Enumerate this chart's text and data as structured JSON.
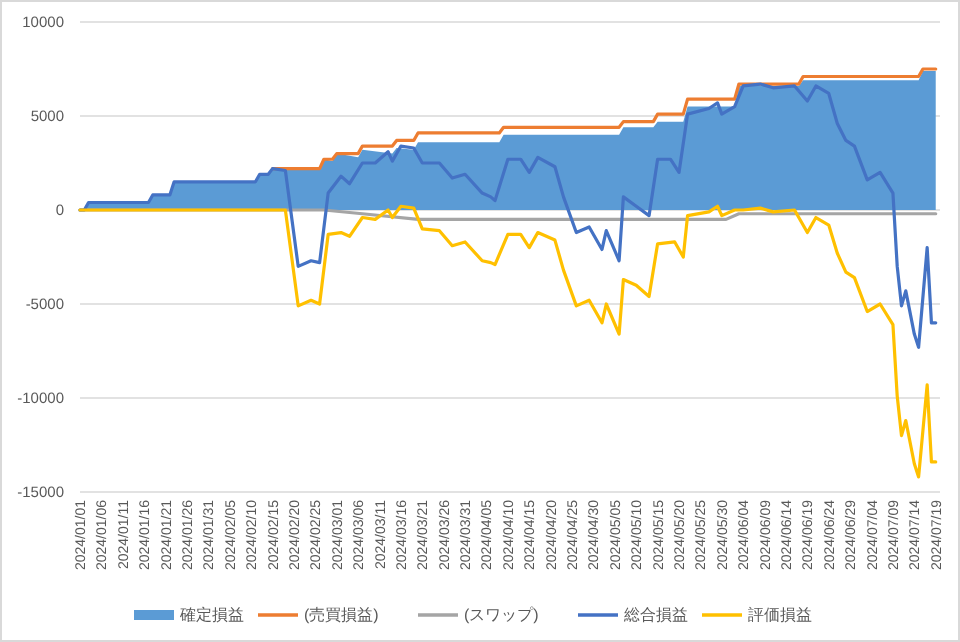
{
  "chart_data": {
    "type": "area",
    "ylim": [
      -15000,
      10000
    ],
    "yticks": [
      -15000,
      -10000,
      -5000,
      0,
      5000,
      10000
    ],
    "xlim": [
      "2024-01-01",
      "2024-07-20"
    ],
    "xticks": [
      {
        "value": "2024-01-01",
        "label": "2024/01/01"
      },
      {
        "value": "2024-01-06",
        "label": "2024/01/06"
      },
      {
        "value": "2024-01-11",
        "label": "2024/01/11"
      },
      {
        "value": "2024-01-16",
        "label": "2024/01/16"
      },
      {
        "value": "2024-01-21",
        "label": "2024/01/21"
      },
      {
        "value": "2024-01-26",
        "label": "2024/01/26"
      },
      {
        "value": "2024-01-31",
        "label": "2024/01/31"
      },
      {
        "value": "2024-02-05",
        "label": "2024/02/05"
      },
      {
        "value": "2024-02-10",
        "label": "2024/02/10"
      },
      {
        "value": "2024-02-15",
        "label": "2024/02/15"
      },
      {
        "value": "2024-02-20",
        "label": "2024/02/20"
      },
      {
        "value": "2024-02-25",
        "label": "2024/02/25"
      },
      {
        "value": "2024-03-01",
        "label": "2024/03/01"
      },
      {
        "value": "2024-03-06",
        "label": "2024/03/06"
      },
      {
        "value": "2024-03-11",
        "label": "2024/03/11"
      },
      {
        "value": "2024-03-16",
        "label": "2024/03/16"
      },
      {
        "value": "2024-03-21",
        "label": "2024/03/21"
      },
      {
        "value": "2024-03-26",
        "label": "2024/03/26"
      },
      {
        "value": "2024-03-31",
        "label": "2024/03/31"
      },
      {
        "value": "2024-04-05",
        "label": "2024/04/05"
      },
      {
        "value": "2024-04-10",
        "label": "2024/04/10"
      },
      {
        "value": "2024-04-15",
        "label": "2024/04/15"
      },
      {
        "value": "2024-04-20",
        "label": "2024/04/20"
      },
      {
        "value": "2024-04-25",
        "label": "2024/04/25"
      },
      {
        "value": "2024-04-30",
        "label": "2024/04/30"
      },
      {
        "value": "2024-05-05",
        "label": "2024/05/05"
      },
      {
        "value": "2024-05-10",
        "label": "2024/05/10"
      },
      {
        "value": "2024-05-15",
        "label": "2024/05/15"
      },
      {
        "value": "2024-05-20",
        "label": "2024/05/20"
      },
      {
        "value": "2024-05-25",
        "label": "2024/05/25"
      },
      {
        "value": "2024-05-30",
        "label": "2024/05/30"
      },
      {
        "value": "2024-06-04",
        "label": "2024/06/04"
      },
      {
        "value": "2024-06-09",
        "label": "2024/06/09"
      },
      {
        "value": "2024-06-14",
        "label": "2024/06/14"
      },
      {
        "value": "2024-06-19",
        "label": "2024/06/19"
      },
      {
        "value": "2024-06-24",
        "label": "2024/06/24"
      },
      {
        "value": "2024-06-29",
        "label": "2024/06/29"
      },
      {
        "value": "2024-07-04",
        "label": "2024/07/04"
      },
      {
        "value": "2024-07-09",
        "label": "2024/07/09"
      },
      {
        "value": "2024-07-14",
        "label": "2024/07/14"
      },
      {
        "value": "2024-07-19",
        "label": "2024/07/19"
      }
    ],
    "grid": "y",
    "legend": "bottom",
    "series": [
      {
        "name": "確定損益",
        "type": "area",
        "color": "#5b9bd5",
        "x": [
          "2024-01-01",
          "2024-01-02",
          "2024-01-03",
          "2024-01-17",
          "2024-01-18",
          "2024-01-22",
          "2024-01-23",
          "2024-02-11",
          "2024-02-12",
          "2024-02-14",
          "2024-02-15",
          "2024-02-26",
          "2024-02-27",
          "2024-02-29",
          "2024-03-01",
          "2024-03-06",
          "2024-03-07",
          "2024-03-14",
          "2024-03-15",
          "2024-03-19",
          "2024-03-20",
          "2024-04-08",
          "2024-04-09",
          "2024-05-06",
          "2024-05-07",
          "2024-05-14",
          "2024-05-15",
          "2024-05-21",
          "2024-05-22",
          "2024-06-02",
          "2024-06-03",
          "2024-06-17",
          "2024-06-18",
          "2024-07-15",
          "2024-07-16",
          "2024-07-19"
        ],
        "values": [
          0,
          0,
          400,
          400,
          800,
          800,
          1500,
          1500,
          1900,
          1900,
          2200,
          2200,
          2700,
          2600,
          3000,
          2800,
          3200,
          3000,
          3300,
          3200,
          3600,
          3600,
          4000,
          4000,
          4400,
          4400,
          4700,
          4700,
          5500,
          5500,
          6600,
          6600,
          6900,
          6900,
          7400,
          7400
        ]
      },
      {
        "name": "(売買損益)",
        "type": "line",
        "color": "#ed7d31",
        "x": [
          "2024-02-15",
          "2024-02-26",
          "2024-02-27",
          "2024-02-29",
          "2024-03-01",
          "2024-03-06",
          "2024-03-07",
          "2024-03-14",
          "2024-03-15",
          "2024-03-19",
          "2024-03-20",
          "2024-04-08",
          "2024-04-09",
          "2024-05-06",
          "2024-05-07",
          "2024-05-14",
          "2024-05-15",
          "2024-05-21",
          "2024-05-22",
          "2024-06-02",
          "2024-06-03",
          "2024-06-17",
          "2024-06-18",
          "2024-07-15",
          "2024-07-16",
          "2024-07-19"
        ],
        "values": [
          2200,
          2200,
          2700,
          2700,
          3000,
          3000,
          3400,
          3400,
          3700,
          3700,
          4100,
          4100,
          4400,
          4400,
          4700,
          4700,
          5100,
          5100,
          5900,
          5900,
          6700,
          6700,
          7100,
          7100,
          7500,
          7500
        ]
      },
      {
        "name": "(スワップ)",
        "type": "line",
        "color": "#a5a5a5",
        "x": [
          "2024-01-01",
          "2024-02-27",
          "2024-03-07",
          "2024-03-20",
          "2024-04-09",
          "2024-05-31",
          "2024-06-03",
          "2024-07-19"
        ],
        "values": [
          0,
          0,
          -200,
          -500,
          -500,
          -500,
          -200,
          -200
        ]
      },
      {
        "name": "総合損益",
        "type": "line",
        "color": "#4472c4",
        "x": [
          "2024-01-01",
          "2024-01-02",
          "2024-01-03",
          "2024-01-17",
          "2024-01-18",
          "2024-01-22",
          "2024-01-23",
          "2024-02-11",
          "2024-02-12",
          "2024-02-14",
          "2024-02-15",
          "2024-02-18",
          "2024-02-21",
          "2024-02-24",
          "2024-02-26",
          "2024-02-28",
          "2024-03-02",
          "2024-03-04",
          "2024-03-07",
          "2024-03-10",
          "2024-03-13",
          "2024-03-14",
          "2024-03-16",
          "2024-03-19",
          "2024-03-21",
          "2024-03-25",
          "2024-03-28",
          "2024-03-31",
          "2024-04-04",
          "2024-04-06",
          "2024-04-07",
          "2024-04-10",
          "2024-04-13",
          "2024-04-15",
          "2024-04-17",
          "2024-04-21",
          "2024-04-23",
          "2024-04-26",
          "2024-04-29",
          "2024-05-02",
          "2024-05-03",
          "2024-05-06",
          "2024-05-07",
          "2024-05-10",
          "2024-05-13",
          "2024-05-15",
          "2024-05-18",
          "2024-05-20",
          "2024-05-22",
          "2024-05-27",
          "2024-05-29",
          "2024-05-30",
          "2024-06-02",
          "2024-06-04",
          "2024-06-08",
          "2024-06-11",
          "2024-06-16",
          "2024-06-19",
          "2024-06-21",
          "2024-06-24",
          "2024-06-26",
          "2024-06-28",
          "2024-06-30",
          "2024-07-03",
          "2024-07-06",
          "2024-07-09",
          "2024-07-10",
          "2024-07-11",
          "2024-07-12",
          "2024-07-14",
          "2024-07-15",
          "2024-07-17",
          "2024-07-18",
          "2024-07-19"
        ],
        "values": [
          0,
          0,
          400,
          400,
          800,
          800,
          1500,
          1500,
          1900,
          1900,
          2200,
          2100,
          -3000,
          -2700,
          -2800,
          900,
          1800,
          1400,
          2500,
          2500,
          3100,
          2600,
          3400,
          3300,
          2500,
          2500,
          1700,
          1900,
          900,
          700,
          500,
          2700,
          2700,
          2000,
          2800,
          2300,
          700,
          -1200,
          -900,
          -2100,
          -1100,
          -2700,
          700,
          200,
          -300,
          2700,
          2700,
          2000,
          5100,
          5400,
          5700,
          5100,
          5500,
          6600,
          6700,
          6500,
          6600,
          5800,
          6600,
          6200,
          4600,
          3700,
          3400,
          1600,
          2000,
          900,
          -3000,
          -5100,
          -4300,
          -6600,
          -7300,
          -2000,
          -6000,
          -6000
        ]
      },
      {
        "name": "評価損益",
        "type": "line",
        "color": "#ffc000",
        "x": [
          "2024-01-01",
          "2024-02-18",
          "2024-02-21",
          "2024-02-24",
          "2024-02-26",
          "2024-02-28",
          "2024-03-02",
          "2024-03-04",
          "2024-03-07",
          "2024-03-10",
          "2024-03-13",
          "2024-03-14",
          "2024-03-16",
          "2024-03-19",
          "2024-03-21",
          "2024-03-25",
          "2024-03-28",
          "2024-03-31",
          "2024-04-04",
          "2024-04-06",
          "2024-04-07",
          "2024-04-10",
          "2024-04-13",
          "2024-04-15",
          "2024-04-17",
          "2024-04-21",
          "2024-04-23",
          "2024-04-26",
          "2024-04-29",
          "2024-05-02",
          "2024-05-03",
          "2024-05-06",
          "2024-05-07",
          "2024-05-10",
          "2024-05-13",
          "2024-05-15",
          "2024-05-19",
          "2024-05-21",
          "2024-05-22",
          "2024-05-27",
          "2024-05-29",
          "2024-05-30",
          "2024-06-02",
          "2024-06-04",
          "2024-06-08",
          "2024-06-11",
          "2024-06-16",
          "2024-06-19",
          "2024-06-21",
          "2024-06-24",
          "2024-06-26",
          "2024-06-28",
          "2024-06-30",
          "2024-07-03",
          "2024-07-06",
          "2024-07-09",
          "2024-07-10",
          "2024-07-11",
          "2024-07-12",
          "2024-07-14",
          "2024-07-15",
          "2024-07-17",
          "2024-07-18",
          "2024-07-19"
        ],
        "values": [
          0,
          0,
          -5100,
          -4800,
          -5000,
          -1300,
          -1200,
          -1400,
          -400,
          -500,
          0,
          -400,
          200,
          100,
          -1000,
          -1100,
          -1900,
          -1700,
          -2700,
          -2800,
          -2900,
          -1300,
          -1300,
          -2000,
          -1200,
          -1600,
          -3200,
          -5100,
          -4800,
          -6000,
          -5000,
          -6600,
          -3700,
          -4000,
          -4600,
          -1800,
          -1700,
          -2500,
          -300,
          -100,
          200,
          -300,
          0,
          0,
          100,
          -100,
          0,
          -1200,
          -400,
          -800,
          -2300,
          -3300,
          -3600,
          -5400,
          -5000,
          -6100,
          -9900,
          -12000,
          -11200,
          -13500,
          -14200,
          -9300,
          -13400,
          -13400
        ]
      }
    ]
  }
}
